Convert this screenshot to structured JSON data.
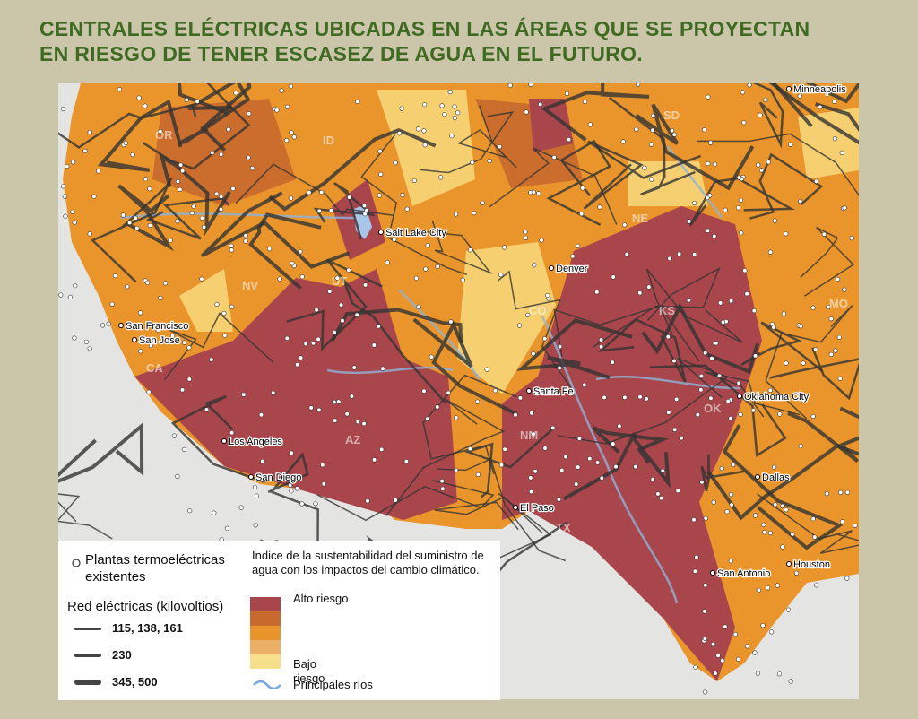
{
  "title": [
    "CENTRALES ELÉCTRICAS UBICADAS EN LAS ÁREAS QUE SE PROYECTAN",
    "EN RIESGO DE TENER ESCASEZ DE AGUA EN EL FUTURO."
  ],
  "map": {
    "cities": [
      "Minneapolis",
      "Salt Lake City",
      "Denver",
      "San Francisco",
      "San Jose",
      "Los Angeles",
      "San Diego",
      "Santa Fe",
      "El Paso",
      "Oklahoma City",
      "Dallas",
      "San Antonio",
      "Houston"
    ],
    "states": [
      "OR",
      "ID",
      "SD",
      "NE",
      "NV",
      "UT",
      "CO",
      "KS",
      "MO",
      "CA",
      "AZ",
      "NM",
      "OK",
      "TX"
    ]
  },
  "legend": {
    "plants": [
      "Plantas termoeléctricas",
      "existentes"
    ],
    "grid_title": "Red eléctricas (kilovoltios)",
    "grid_items": [
      "115, 138, 161",
      "230",
      "345, 500"
    ],
    "index_title": "Índice de la sustentabilidad del suministro de agua con los impactos del cambio climático.",
    "high": "Alto riesgo",
    "low": "Bajo riesgo",
    "rivers": "Principales ríos"
  }
}
